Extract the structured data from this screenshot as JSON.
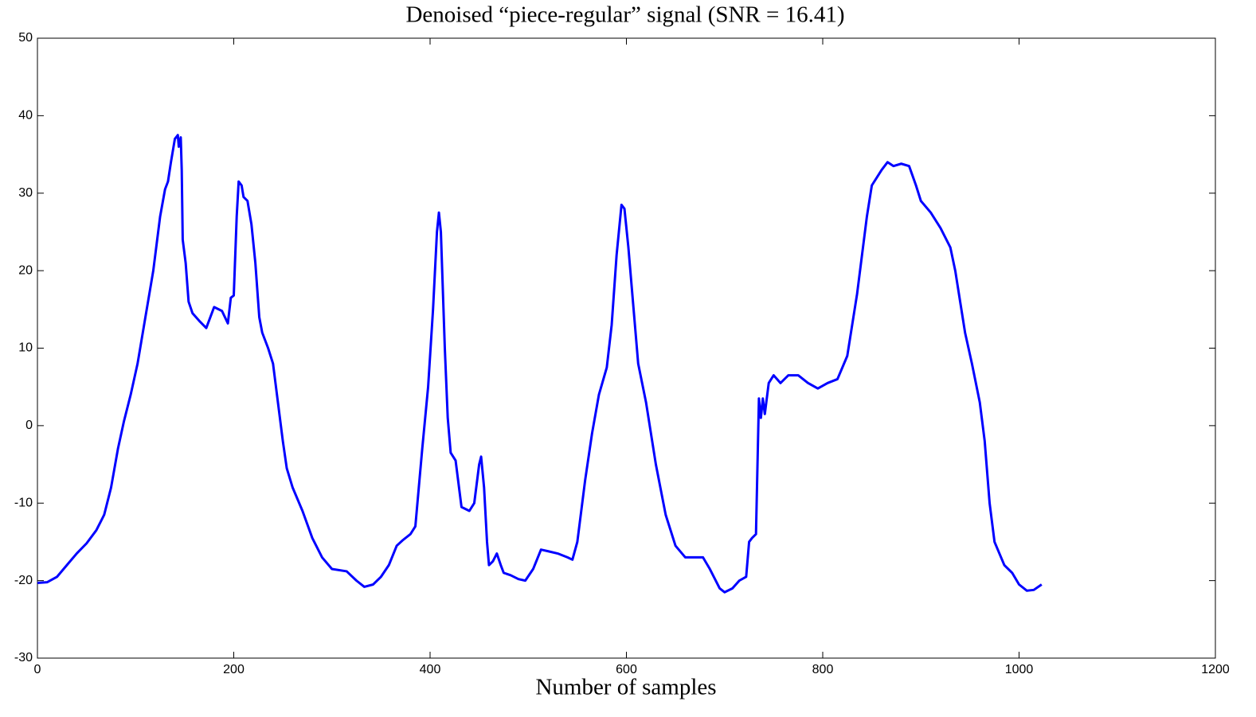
{
  "chart_data": {
    "type": "line",
    "title": "Denoised “piece-regular” signal (SNR = 16.41)",
    "x_label": "Number of samples",
    "x": [
      0,
      10,
      20,
      30,
      40,
      50,
      60,
      68,
      75,
      82,
      88,
      95,
      102,
      110,
      118,
      125,
      130,
      133,
      136,
      140,
      143,
      144,
      146,
      147,
      148,
      151,
      154,
      158,
      165,
      172,
      180,
      188,
      194,
      197,
      200,
      203,
      205,
      208,
      210,
      214,
      218,
      222,
      226,
      229,
      235,
      240,
      245,
      250,
      254,
      260,
      270,
      280,
      290,
      300,
      315,
      325,
      333,
      342,
      350,
      358,
      366,
      372,
      380,
      385,
      392,
      398,
      403,
      407,
      409,
      411,
      415,
      418,
      421,
      426,
      432,
      440,
      445,
      450,
      452,
      455,
      458,
      460,
      464,
      468,
      472,
      475,
      482,
      490,
      497,
      505,
      513,
      520,
      530,
      540,
      545,
      550,
      558,
      565,
      572,
      580,
      585,
      590,
      595,
      598,
      602,
      608,
      612,
      620,
      630,
      640,
      650,
      660,
      670,
      678,
      685,
      695,
      700,
      708,
      715,
      722,
      725,
      728,
      732,
      735,
      737,
      739,
      741,
      745,
      750,
      757,
      765,
      775,
      785,
      795,
      805,
      815,
      825,
      835,
      845,
      850,
      855,
      860,
      866,
      872,
      880,
      888,
      895,
      900,
      910,
      920,
      930,
      935,
      940,
      945,
      952,
      960,
      965,
      970,
      975,
      980,
      985,
      993,
      1000,
      1008,
      1015,
      1023
    ],
    "series": [
      {
        "name": "signal",
        "color": "#0000ff",
        "values": [
          -20.3,
          -20.2,
          -19.5,
          -18,
          -16.5,
          -15.2,
          -13.5,
          -11.5,
          -8,
          -3,
          0.5,
          4,
          8,
          14,
          20,
          27,
          30.5,
          31.5,
          34,
          37,
          37.5,
          36,
          37.2,
          33,
          24,
          21,
          16,
          14.5,
          13.5,
          12.6,
          15.3,
          14.8,
          13.2,
          16.5,
          16.8,
          27,
          31.5,
          31,
          29.5,
          29,
          26,
          21,
          14,
          12,
          10,
          8,
          3,
          -2,
          -5.5,
          -8,
          -11,
          -14.5,
          -17,
          -18.5,
          -18.8,
          -20,
          -20.8,
          -20.5,
          -19.5,
          -18,
          -15.5,
          -14.8,
          -14,
          -13,
          -3,
          5,
          15,
          25,
          27.5,
          25,
          10,
          1,
          -3.5,
          -4.5,
          -10.5,
          -11,
          -10,
          -5,
          -4,
          -8,
          -15,
          -18,
          -17.5,
          -16.5,
          -18,
          -19,
          -19.3,
          -19.8,
          -20,
          -18.5,
          -16,
          -16.2,
          -16.5,
          -17,
          -17.3,
          -15,
          -7,
          -1,
          4,
          7.5,
          13,
          22,
          28.5,
          28,
          23,
          14,
          8,
          3,
          -5,
          -11.5,
          -15.5,
          -17,
          -17,
          -17,
          -18.5,
          -21,
          -21.5,
          -21,
          -20,
          -19.5,
          -15,
          -14.5,
          -14,
          3.5,
          1,
          3.5,
          1.5,
          5.5,
          6.5,
          5.5,
          6.5,
          6.5,
          5.5,
          4.8,
          5.5,
          6,
          9,
          17,
          27,
          31,
          32,
          33,
          34,
          33.5,
          33.8,
          33.5,
          31,
          29,
          27.5,
          25.5,
          23,
          20,
          16,
          12,
          8,
          3,
          -2,
          -10,
          -15,
          -16.5,
          -18,
          -19,
          -20.5,
          -21.3,
          -21.2,
          -20.5
        ]
      }
    ],
    "xlim": [
      0,
      1200
    ],
    "xticks": [
      0,
      200,
      400,
      600,
      800,
      1000,
      1200
    ],
    "ylim": [
      -30,
      50
    ],
    "yticks": [
      -30,
      -20,
      -10,
      0,
      10,
      20,
      30,
      40,
      50
    ],
    "grid": false
  }
}
